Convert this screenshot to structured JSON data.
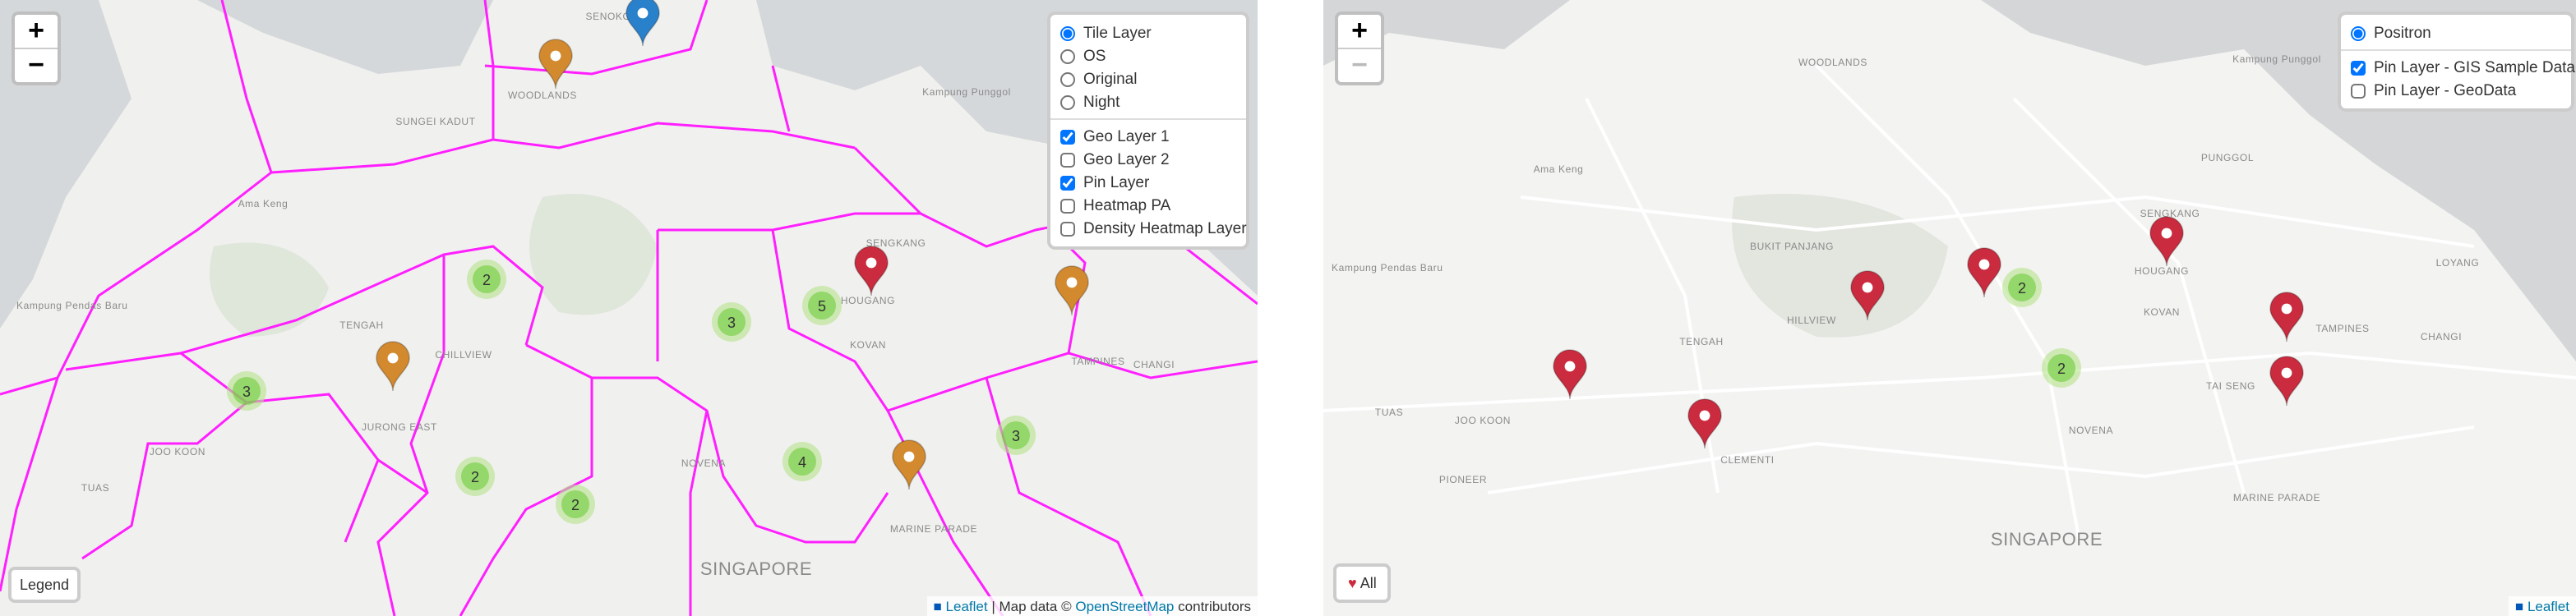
{
  "left_map": {
    "zoom_in": "+",
    "zoom_out": "−",
    "layer_control": {
      "base_layers": [
        {
          "label": "Tile Layer",
          "selected": true
        },
        {
          "label": "OS",
          "selected": false
        },
        {
          "label": "Original",
          "selected": false
        },
        {
          "label": "Night",
          "selected": false
        }
      ],
      "overlays": [
        {
          "label": "Geo Layer 1",
          "checked": true
        },
        {
          "label": "Geo Layer 2",
          "checked": false
        },
        {
          "label": "Pin Layer",
          "checked": true
        },
        {
          "label": "Heatmap PA",
          "checked": false
        },
        {
          "label": "Density Heatmap Layer",
          "checked": false
        }
      ]
    },
    "cluster_counts": [
      2,
      3,
      3,
      5,
      3,
      2,
      2,
      4
    ],
    "place_labels": [
      "SENOKO",
      "WOODLANDS",
      "SUNGEI KADUT",
      "Ama Keng",
      "Kampung Pendas Baru",
      "TENGAH",
      "CHILLVIEW",
      "JURONG EAST",
      "JOO KOON",
      "TUAS",
      "SENGKANG",
      "HOUGANG",
      "KOVAN",
      "TAMPINES",
      "CHANGI",
      "NOVENA",
      "MARINE PARADE",
      "SINGAPORE",
      "Kampung Punggol"
    ],
    "legend_button": "Legend",
    "attribution": {
      "leaflet": "Leaflet",
      "map_data": "| Map data ©",
      "osm": "OpenStreetMap",
      "contributors": "contributors"
    }
  },
  "right_map": {
    "zoom_in": "+",
    "zoom_out": "−",
    "layer_control": {
      "base_layers": [
        {
          "label": "Positron",
          "selected": true
        }
      ],
      "overlays": [
        {
          "label": "Pin Layer - GIS Sample Data",
          "checked": true
        },
        {
          "label": "Pin Layer - GeoData",
          "checked": false
        }
      ]
    },
    "cluster_counts": [
      2,
      2
    ],
    "place_labels": [
      "WOODLANDS",
      "Ama Keng",
      "Kampung Pendas Baru",
      "BUKIT PANJANG",
      "TENGAH",
      "HILLVIEW",
      "SENGKANG",
      "PUNGGOL",
      "HOUGANG",
      "KOVAN",
      "TAMPINES",
      "CHANGI",
      "LOYANG",
      "TAI SENG",
      "NOVENA",
      "CLEMENTI",
      "JOO KOON",
      "TUAS",
      "PIONEER",
      "SINGAPORE",
      "MARINE PARADE",
      "Kampung Punggol"
    ],
    "all_button": "All",
    "attribution": {
      "leaflet": "Leaflet"
    }
  }
}
